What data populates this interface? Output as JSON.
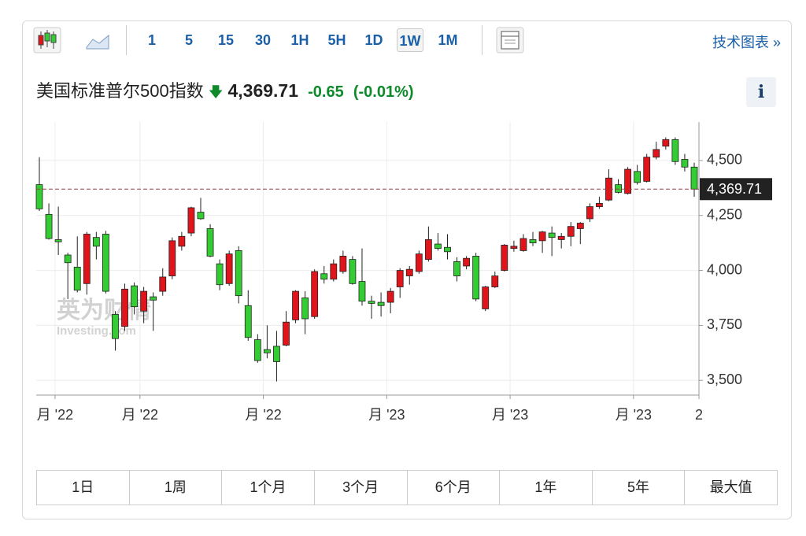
{
  "toolbar": {
    "intervals": [
      "1",
      "5",
      "15",
      "30",
      "1H",
      "5H",
      "1D",
      "1W",
      "1M"
    ],
    "active": "1W",
    "link": "技术图表 »"
  },
  "header": {
    "title": "美国标准普尔500指数",
    "price": "4,369.71",
    "change": "-0.65",
    "change_pct": "(-0.01%)",
    "info": "i"
  },
  "chart_data": {
    "type": "candlestick",
    "up_color": "#e0141b",
    "down_color": "#33cc33",
    "watermark": [
      "英为财情",
      "Investing.com"
    ],
    "categories": [
      null,
      null,
      null,
      null,
      null,
      null,
      null,
      null,
      null,
      null,
      null,
      null,
      null,
      null,
      null,
      null,
      null,
      null,
      null,
      null,
      null,
      null,
      null,
      null,
      null,
      null,
      null,
      null,
      null,
      null,
      null,
      null,
      null,
      null,
      null,
      null,
      null,
      null,
      null,
      null,
      null,
      null,
      null,
      null,
      null,
      null,
      null,
      null,
      null,
      null,
      null,
      null,
      null,
      null,
      null,
      null,
      null,
      null,
      null,
      null,
      null,
      null,
      null,
      null,
      null,
      null,
      null,
      null,
      null,
      null
    ],
    "open": [
      4390,
      4255,
      4140,
      4070,
      4015,
      3940,
      4150,
      4165,
      3800,
      3745,
      3930,
      3815,
      3880,
      3905,
      3975,
      4110,
      4170,
      4265,
      4190,
      4030,
      3940,
      4090,
      3840,
      3685,
      3640,
      3655,
      3660,
      3775,
      3875,
      3790,
      3985,
      3960,
      3995,
      4050,
      3950,
      3860,
      3855,
      3855,
      3925,
      3975,
      3995,
      4050,
      4120,
      4105,
      4040,
      4020,
      4065,
      3825,
      3925,
      4000,
      4100,
      4090,
      4140,
      4135,
      4170,
      4140,
      4155,
      4190,
      4235,
      4290,
      4320,
      4390,
      4350,
      4450,
      4405,
      4515,
      4565,
      4595,
      4505,
      4470
    ],
    "high": [
      4515,
      4305,
      4290,
      4080,
      4155,
      4175,
      4175,
      4180,
      3815,
      3940,
      3945,
      3925,
      3900,
      4010,
      4150,
      4175,
      4290,
      4330,
      4210,
      4050,
      4090,
      4110,
      3910,
      3710,
      3750,
      3725,
      3815,
      3910,
      3905,
      4005,
      4020,
      4050,
      4090,
      4065,
      4100,
      3885,
      3900,
      3920,
      4010,
      4020,
      4090,
      4200,
      4170,
      4165,
      4060,
      4065,
      4080,
      3930,
      3995,
      4120,
      4135,
      4165,
      4175,
      4180,
      4200,
      4170,
      4220,
      4220,
      4305,
      4335,
      4460,
      4415,
      4470,
      4480,
      4530,
      4585,
      4605,
      4605,
      4530,
      4490
    ],
    "low": [
      4270,
      4140,
      4070,
      3870,
      3900,
      3890,
      4050,
      3895,
      3635,
      3725,
      3800,
      3760,
      3725,
      3885,
      3960,
      4090,
      4155,
      4230,
      4060,
      3910,
      3930,
      3850,
      3680,
      3580,
      3600,
      3495,
      3655,
      3760,
      3710,
      3780,
      3940,
      3950,
      3985,
      3935,
      3840,
      3780,
      3790,
      3805,
      3875,
      3935,
      3985,
      4040,
      4090,
      4050,
      3950,
      4005,
      3860,
      3815,
      3920,
      3995,
      4085,
      4085,
      4110,
      4080,
      4065,
      4100,
      4110,
      4120,
      4220,
      4280,
      4315,
      4350,
      4345,
      4390,
      4400,
      4505,
      4550,
      4480,
      4450,
      4335
    ],
    "close": [
      4280,
      4145,
      4130,
      4035,
      3910,
      4165,
      4110,
      3905,
      3690,
      3915,
      3835,
      3905,
      3865,
      3970,
      4135,
      4155,
      4285,
      4235,
      4065,
      3935,
      4075,
      3885,
      3695,
      3590,
      3625,
      3585,
      3765,
      3905,
      3780,
      3995,
      3960,
      4030,
      4065,
      3940,
      3860,
      3850,
      3840,
      3905,
      4000,
      4005,
      4075,
      4140,
      4100,
      4085,
      3975,
      4055,
      3870,
      3925,
      3975,
      4115,
      4110,
      4145,
      4125,
      4175,
      4150,
      4155,
      4200,
      4215,
      4290,
      4305,
      4420,
      4355,
      4460,
      4400,
      4515,
      4550,
      4595,
      4495,
      4470,
      4369.71
    ],
    "last_value": {
      "value": 4369.71,
      "label": "4,369.71"
    },
    "ylim": [
      3440,
      4675
    ],
    "yticks": [
      {
        "value": 3500,
        "label": "3,500"
      },
      {
        "value": 3750,
        "label": "3,750"
      },
      {
        "value": 4000,
        "label": "4,000"
      },
      {
        "value": 4250,
        "label": "4,250"
      },
      {
        "value": 4500,
        "label": "4,500"
      }
    ],
    "xlim": [
      -0.33,
      69.5
    ],
    "xticks": [
      {
        "value": 1.65,
        "label": "月 '22"
      },
      {
        "value": 10.6,
        "label": "月 '22"
      },
      {
        "value": 23.6,
        "label": "月 '22"
      },
      {
        "value": 36.6,
        "label": "月 '23"
      },
      {
        "value": 49.6,
        "label": "月 '23"
      },
      {
        "value": 62.6,
        "label": "月 '23"
      },
      {
        "value": 69.5,
        "label": "2"
      }
    ],
    "grid": true
  },
  "ranges": [
    "1日",
    "1周",
    "1个月",
    "3个月",
    "6个月",
    "1年",
    "5年",
    "最大值"
  ]
}
